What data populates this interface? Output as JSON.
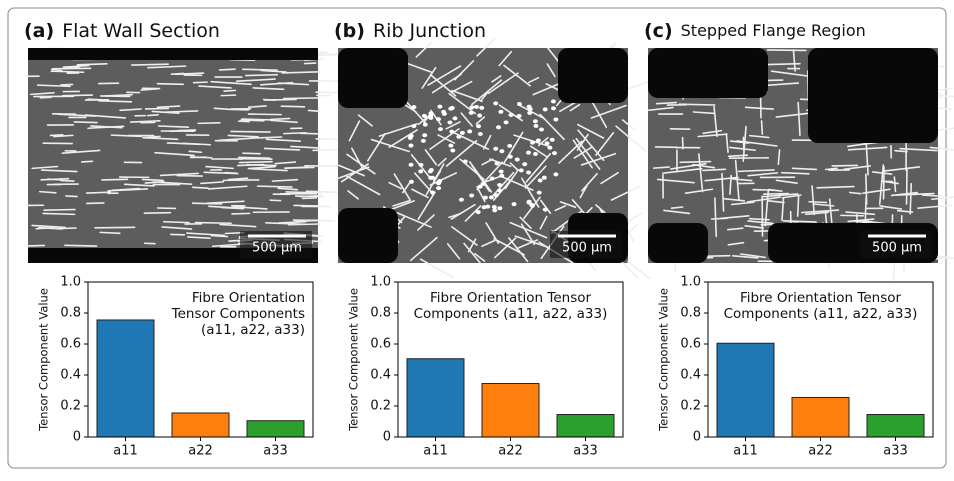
{
  "chart_data": [
    {
      "type": "bar",
      "panel_label": "(a)",
      "title": "Flat Wall Section",
      "image_scale_label": "500 µm",
      "annotation_lines": [
        "Fibre Orientation",
        "Tensor Components",
        "(a11, a22, a33)"
      ],
      "annotation_align": "right",
      "ylabel": "Tensor Component Value",
      "categories": [
        "a11",
        "a22",
        "a33"
      ],
      "values": [
        0.755,
        0.155,
        0.105
      ],
      "colors": [
        "#1f77b4",
        "#ff7f0e",
        "#2ca02c"
      ],
      "ylim": [
        0,
        1
      ],
      "yticks": [
        0,
        0.2,
        0.4,
        0.6,
        0.8,
        {
          "value": 1,
          "label": "1.0"
        }
      ]
    },
    {
      "type": "bar",
      "panel_label": "(b)",
      "title": "Rib Junction",
      "image_scale_label": "500 µm",
      "annotation_lines": [
        "Fibre Orientation Tensor",
        "Components (a11, a22, a33)"
      ],
      "annotation_align": "center",
      "ylabel": "Tensor Component Value",
      "categories": [
        "a11",
        "a22",
        "a33"
      ],
      "values": [
        0.505,
        0.345,
        0.145
      ],
      "colors": [
        "#1f77b4",
        "#ff7f0e",
        "#2ca02c"
      ],
      "ylim": [
        0,
        1
      ],
      "yticks": [
        0,
        0.2,
        0.4,
        0.6,
        0.8,
        {
          "value": 1,
          "label": "1.0"
        }
      ]
    },
    {
      "type": "bar",
      "panel_label": "(c)",
      "title": "Stepped Flange Region",
      "image_scale_label": "500 µm",
      "annotation_lines": [
        "Fibre Orientation Tensor",
        "Components (a11, a22, a33)"
      ],
      "annotation_align": "center",
      "ylabel": "Tensor Component Value",
      "categories": [
        "a11",
        "a22",
        "a33"
      ],
      "values": [
        0.605,
        0.255,
        0.145
      ],
      "colors": [
        "#1f77b4",
        "#ff7f0e",
        "#2ca02c"
      ],
      "ylim": [
        0,
        1
      ],
      "yticks": [
        0,
        0.2,
        0.4,
        0.6,
        0.8,
        {
          "value": 1,
          "label": "1.0"
        }
      ]
    }
  ]
}
